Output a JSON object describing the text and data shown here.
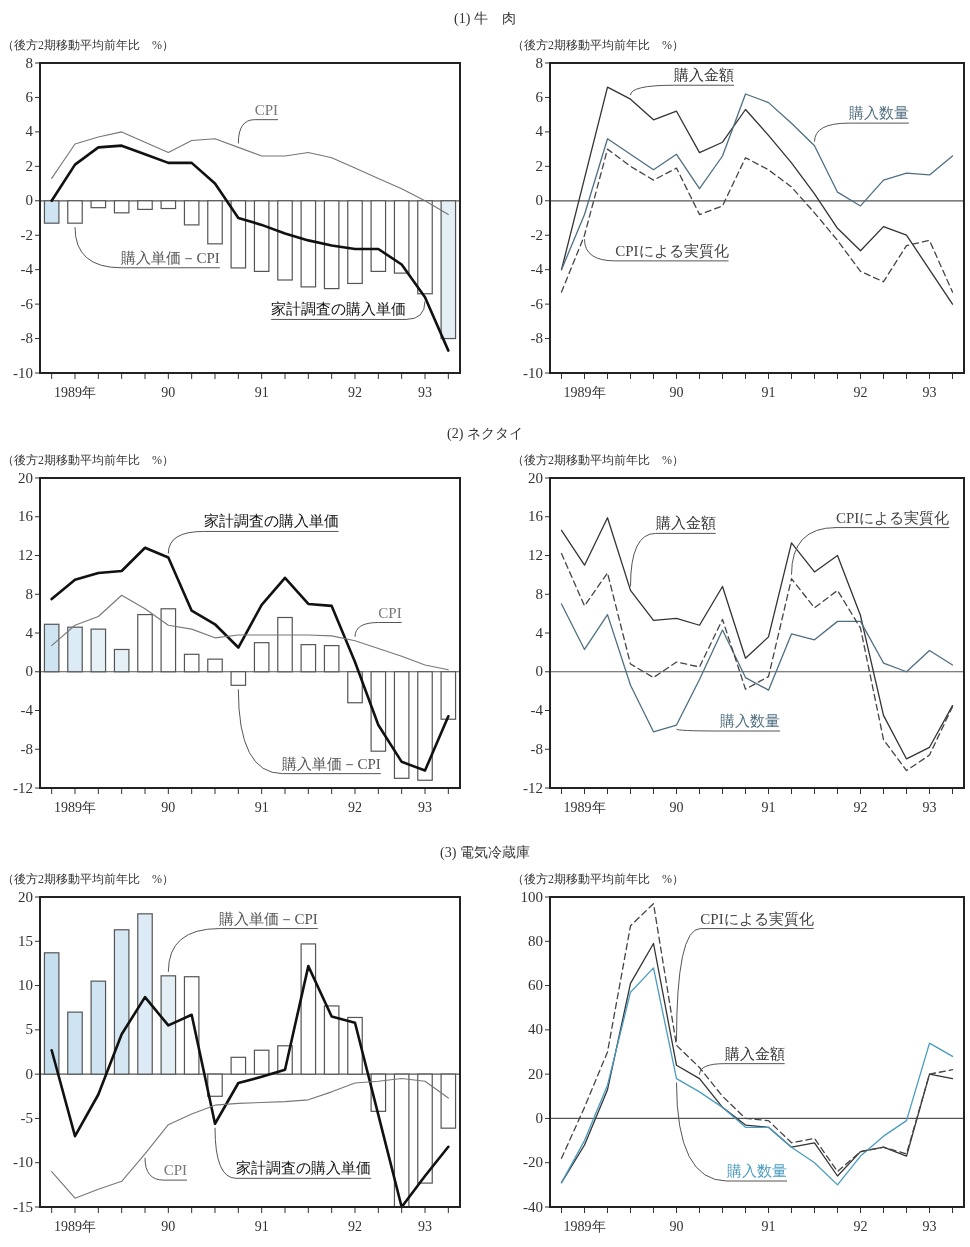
{
  "chart_data": [
    {
      "type": "bar",
      "title": "(1) 牛　肉",
      "ylabel": "（後方2期移動平均前年比　%）",
      "categories": [
        null,
        "1989年",
        null,
        null,
        null,
        "90",
        null,
        null,
        null,
        "91",
        null,
        null,
        null,
        "92",
        null,
        null,
        "93",
        null
      ],
      "ylim": [
        -10,
        8
      ],
      "yticks": [
        -10,
        -8,
        -6,
        -4,
        -2,
        0,
        2,
        4,
        6,
        8
      ],
      "ref_lines": [
        {
          "axis": "y",
          "value": 0,
          "color": "#555555"
        }
      ],
      "series": [
        {
          "name": "購入単価－CPI",
          "type": "bar",
          "color": "#555555",
          "colors": [
            "#cfe4f2",
            "#ffffff",
            "#ffffff",
            "#ffffff",
            "#ffffff",
            "#ffffff",
            "#ffffff",
            "#ffffff",
            "#ffffff",
            "#ffffff",
            "#ffffff",
            "#ffffff",
            "#ffffff",
            "#ffffff",
            "#ffffff",
            "#ffffff",
            "#ffffff",
            "#e3eef5"
          ],
          "values": [
            -1.3,
            -1.3,
            -0.4,
            -0.7,
            -0.5,
            -0.45,
            -1.4,
            -2.5,
            -3.9,
            -4.1,
            -4.6,
            -5.0,
            -5.1,
            -4.8,
            -4.1,
            -4.2,
            -5.4,
            -8.0
          ]
        },
        {
          "name": "家計調査の購入単価",
          "type": "line",
          "color": "#111111",
          "values": [
            0.0,
            2.1,
            3.1,
            3.2,
            2.7,
            2.2,
            2.2,
            1.0,
            -1.0,
            -1.4,
            -1.9,
            -2.3,
            -2.6,
            -2.8,
            -2.8,
            -3.7,
            -5.6,
            -8.7
          ]
        },
        {
          "name": "CPI",
          "type": "line",
          "color": "#777777",
          "values": [
            1.3,
            3.3,
            3.7,
            4.0,
            3.4,
            2.8,
            3.5,
            3.6,
            3.1,
            2.6,
            2.6,
            2.8,
            2.5,
            1.9,
            1.3,
            0.7,
            0.0,
            -0.8
          ]
        }
      ]
    },
    {
      "type": "line",
      "ylabel": "（後方2期移動平均前年比　%）",
      "categories": [
        null,
        "1989年",
        null,
        null,
        null,
        "90",
        null,
        null,
        null,
        "91",
        null,
        null,
        null,
        "92",
        null,
        null,
        "93",
        null
      ],
      "ylim": [
        -10,
        8
      ],
      "yticks": [
        -10,
        -8,
        -6,
        -4,
        -2,
        0,
        2,
        4,
        6,
        8
      ],
      "ref_lines": [
        {
          "axis": "y",
          "value": 0,
          "color": "#555555"
        }
      ],
      "series": [
        {
          "name": "購入金額",
          "color": "#333333",
          "values": [
            -4.0,
            1.3,
            6.6,
            5.9,
            4.7,
            5.2,
            2.8,
            3.4,
            5.3,
            3.8,
            2.2,
            0.4,
            -1.6,
            -2.9,
            -1.5,
            -2.0,
            -4.0,
            -6.0
          ]
        },
        {
          "name": "購入数量",
          "color": "#4f6f80",
          "values": [
            -4.0,
            -0.8,
            3.6,
            2.7,
            1.8,
            2.7,
            0.7,
            2.6,
            6.2,
            5.7,
            4.5,
            3.2,
            0.5,
            -0.3,
            1.2,
            1.6,
            1.5,
            2.6
          ]
        },
        {
          "name": "CPIによる実質化",
          "color": "#444444",
          "line_style": "dashed",
          "values": [
            -5.3,
            -2.0,
            3.0,
            2.0,
            1.2,
            1.9,
            -0.8,
            -0.3,
            2.5,
            1.8,
            0.8,
            -0.7,
            -2.3,
            -4.1,
            -4.7,
            -2.6,
            -2.3,
            -5.3
          ]
        }
      ]
    },
    {
      "type": "bar",
      "title": "(2) ネクタイ",
      "ylabel": "（後方2期移動平均前年比　%）",
      "categories": [
        null,
        "1989年",
        null,
        null,
        null,
        "90",
        null,
        null,
        null,
        "91",
        null,
        null,
        null,
        "92",
        null,
        null,
        "93",
        null
      ],
      "ylim": [
        -12,
        20
      ],
      "yticks": [
        -12,
        -8,
        -4,
        0,
        4,
        8,
        12,
        16,
        20
      ],
      "ref_lines": [
        {
          "axis": "y",
          "value": 0,
          "color": "#555555"
        }
      ],
      "series": [
        {
          "name": "購入単価－CPI",
          "type": "bar",
          "color": "#555555",
          "colors": [
            "#cfe4f2",
            "#dcebf5",
            "#e6f0f7",
            "#e6f0f7",
            "#ffffff",
            "#ffffff",
            "#ffffff",
            "#ffffff",
            "#ffffff",
            "#ffffff",
            "#ffffff",
            "#ffffff",
            "#ffffff",
            "#ffffff",
            "#ffffff",
            "#ffffff",
            "#ffffff",
            "#ffffff"
          ],
          "values": [
            4.9,
            4.6,
            4.4,
            2.3,
            5.9,
            6.5,
            1.8,
            1.3,
            -1.4,
            3.0,
            5.6,
            2.8,
            2.7,
            -3.2,
            -8.2,
            -11.0,
            -11.2,
            -4.9
          ]
        },
        {
          "name": "家計調査の購入単価",
          "type": "line",
          "color": "#111111",
          "values": [
            7.5,
            9.5,
            10.2,
            10.4,
            12.8,
            11.8,
            6.3,
            4.9,
            2.5,
            6.9,
            9.7,
            7.0,
            6.8,
            1.0,
            -5.5,
            -9.3,
            -10.2,
            -4.6
          ]
        },
        {
          "name": "CPI",
          "type": "line",
          "color": "#777777",
          "values": [
            2.7,
            4.8,
            5.7,
            7.9,
            6.5,
            4.8,
            4.4,
            3.5,
            3.8,
            3.8,
            3.8,
            3.8,
            3.7,
            3.2,
            2.4,
            1.6,
            0.7,
            0.2
          ]
        }
      ]
    },
    {
      "type": "line",
      "ylabel": "（後方2期移動平均前年比　%）",
      "categories": [
        null,
        "1989年",
        null,
        null,
        null,
        "90",
        null,
        null,
        null,
        "91",
        null,
        null,
        null,
        "92",
        null,
        null,
        "93",
        null
      ],
      "ylim": [
        -12,
        20
      ],
      "yticks": [
        -12,
        -8,
        -4,
        0,
        4,
        8,
        12,
        16,
        20
      ],
      "ref_lines": [
        {
          "axis": "y",
          "value": 0,
          "color": "#555555"
        }
      ],
      "series": [
        {
          "name": "購入金額",
          "color": "#333333",
          "values": [
            14.6,
            11.0,
            15.9,
            8.4,
            5.3,
            5.5,
            4.8,
            8.8,
            1.4,
            3.6,
            13.3,
            10.3,
            12.0,
            5.8,
            -4.5,
            -9.0,
            -7.8,
            -3.5
          ]
        },
        {
          "name": "購入数量",
          "color": "#4f6f80",
          "values": [
            7.0,
            2.3,
            5.9,
            -1.4,
            -6.2,
            -5.5,
            -0.8,
            4.3,
            -0.6,
            -1.9,
            3.9,
            3.3,
            5.2,
            5.2,
            0.9,
            0.0,
            2.2,
            0.7
          ]
        },
        {
          "name": "CPIによる実質化",
          "color": "#444444",
          "line_style": "dashed",
          "values": [
            12.2,
            6.8,
            10.2,
            0.8,
            -0.6,
            1.0,
            0.5,
            5.4,
            -1.8,
            -0.5,
            9.6,
            6.6,
            8.4,
            4.5,
            -7.0,
            -10.2,
            -8.6,
            -3.6
          ]
        }
      ]
    },
    {
      "type": "bar",
      "title": "(3) 電気冷蔵庫",
      "ylabel": "（後方2期移動平均前年比　%）",
      "categories": [
        null,
        "1989年",
        null,
        null,
        null,
        "90",
        null,
        null,
        null,
        "91",
        null,
        null,
        null,
        "92",
        null,
        null,
        "93",
        null
      ],
      "ylim": [
        -15,
        20
      ],
      "yticks": [
        -15,
        -10,
        -5,
        0,
        5,
        10,
        15,
        20
      ],
      "ref_lines": [
        {
          "axis": "y",
          "value": 0,
          "color": "#555555"
        }
      ],
      "series": [
        {
          "name": "購入単価－CPI",
          "type": "bar",
          "color": "#555555",
          "colors": [
            "#c6dfef",
            "#cfe4f2",
            "#cfe4f2",
            "#d5e7f3",
            "#dcebf5",
            "#e3eef5",
            "#ffffff",
            "#ffffff",
            "#ffffff",
            "#ffffff",
            "#ffffff",
            "#ffffff",
            "#ffffff",
            "#ffffff",
            "#ffffff",
            "#ffffff",
            "#ffffff",
            "#ffffff"
          ],
          "values": [
            13.7,
            7.0,
            10.5,
            16.3,
            18.1,
            11.1,
            11.0,
            -2.5,
            1.9,
            2.7,
            3.2,
            14.7,
            7.7,
            6.4,
            -4.2,
            -15.0,
            -12.3,
            -6.1
          ]
        },
        {
          "name": "家計調査の購入単価",
          "type": "line",
          "color": "#111111",
          "values": [
            2.7,
            -7.0,
            -2.3,
            4.5,
            8.7,
            5.5,
            6.7,
            -5.6,
            -1.0,
            -0.3,
            0.5,
            12.2,
            6.5,
            5.8,
            -4.6,
            -15.0,
            -11.5,
            -8.2
          ]
        },
        {
          "name": "CPI",
          "type": "line",
          "color": "#777777",
          "values": [
            -11.0,
            -14.0,
            -13.0,
            -12.1,
            -9.0,
            -5.7,
            -4.5,
            -3.5,
            -3.3,
            -3.2,
            -3.1,
            -2.9,
            -2.0,
            -1.0,
            -0.8,
            -0.5,
            -0.8,
            -2.7
          ]
        }
      ]
    },
    {
      "type": "line",
      "ylabel": "（後方2期移動平均前年比　%）",
      "categories": [
        null,
        "1989年",
        null,
        null,
        null,
        "90",
        null,
        null,
        null,
        "91",
        null,
        null,
        null,
        "92",
        null,
        null,
        "93",
        null
      ],
      "ylim": [
        -40,
        100
      ],
      "yticks": [
        -40,
        -20,
        0,
        20,
        40,
        60,
        80,
        100
      ],
      "ref_lines": [
        {
          "axis": "y",
          "value": 0,
          "color": "#555555"
        }
      ],
      "series": [
        {
          "name": "購入金額",
          "color": "#333333",
          "values": [
            -29,
            -12,
            13,
            61,
            79,
            24,
            18,
            5,
            -3,
            -4,
            -13,
            -11,
            -26,
            -15,
            -13,
            -17,
            20,
            18
          ]
        },
        {
          "name": "購入数量",
          "color": "#4a9cc0",
          "values": [
            -29,
            -10,
            15,
            57,
            68,
            18,
            12,
            5,
            -4,
            -4,
            -13,
            -20,
            -30,
            -17,
            -8,
            -1,
            34,
            28
          ]
        },
        {
          "name": "CPIによる実質化",
          "color": "#444444",
          "line_style": "dashed",
          "values": [
            -18,
            5,
            30,
            87,
            97,
            33,
            23,
            10,
            0,
            -1,
            -11,
            -9,
            -24,
            -15,
            -13,
            -16,
            20,
            22
          ]
        }
      ]
    }
  ]
}
